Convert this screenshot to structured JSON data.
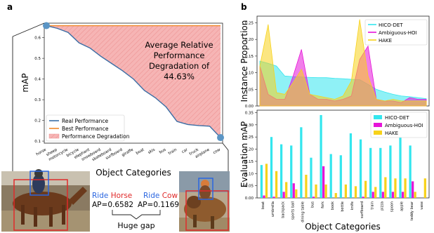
{
  "panel_labels": {
    "a": "a",
    "b": "b"
  },
  "panel_a": {
    "annotation": [
      "Average Relative",
      "Performance",
      "Degradation of",
      "44.63%"
    ],
    "legend": [
      "Real Performance",
      "Best Performance",
      "Performance Degradation"
    ],
    "photo_left": {
      "ride": "Ride",
      "object": "Horse",
      "ap": "AP=0.6582"
    },
    "photo_right": {
      "ride": "Ride",
      "object": "Cow",
      "ap": "AP=0.1169"
    },
    "gap_label": "Huge gap"
  },
  "colors": {
    "real": "#3a6ea5",
    "best": "#f0892a",
    "degradation_fill": "#f4aaaa",
    "hico": "#33e6ee",
    "ambiguous": "#e614d8",
    "hake": "#f7d21a",
    "point": "#5b95c5"
  },
  "chart_data": [
    {
      "type": "area",
      "title": "",
      "xlabel": "Object Categories",
      "ylabel": "mAP",
      "categories": [
        "horse",
        "sheep",
        "motorcycle",
        "bicycle",
        "elephant",
        "snowboard",
        "skateboard",
        "surfboard",
        "giraffe",
        "boat",
        "skis",
        "bus",
        "train",
        "car",
        "truck",
        "airplane",
        "cow"
      ],
      "series": [
        {
          "name": "Real Performance",
          "values": [
            0.658,
            0.645,
            0.625,
            0.575,
            0.55,
            0.51,
            0.475,
            0.44,
            0.4,
            0.345,
            0.31,
            0.265,
            0.195,
            0.18,
            0.175,
            0.172,
            0.117
          ]
        },
        {
          "name": "Best Performance",
          "values": [
            0.658,
            0.658,
            0.658,
            0.658,
            0.658,
            0.658,
            0.658,
            0.658,
            0.658,
            0.658,
            0.658,
            0.658,
            0.658,
            0.658,
            0.658,
            0.658,
            0.658
          ]
        }
      ],
      "yticks": [
        0.1,
        0.2,
        0.3,
        0.4,
        0.5,
        0.6
      ],
      "ylim": [
        0.09,
        0.67
      ],
      "legend_position": "lower-left"
    },
    {
      "type": "area",
      "title": "",
      "xlabel": "",
      "ylabel": "Instance Proportion",
      "x_count": 21,
      "series": [
        {
          "name": "HICO-DET",
          "values": [
            0.135,
            0.128,
            0.12,
            0.09,
            0.088,
            0.087,
            0.086,
            0.085,
            0.085,
            0.083,
            0.082,
            0.08,
            0.079,
            0.065,
            0.05,
            0.042,
            0.035,
            0.03,
            0.028,
            0.025,
            0.022
          ]
        },
        {
          "name": "Ambiguous-HOI",
          "values": [
            0.12,
            0.035,
            0.02,
            0.02,
            0.09,
            0.17,
            0.035,
            0.02,
            0.02,
            0.015,
            0.02,
            0.03,
            0.14,
            0.18,
            0.02,
            0.015,
            0.015,
            0.01,
            0.025,
            0.02,
            0.02
          ]
        },
        {
          "name": "HAKE",
          "values": [
            0.12,
            0.245,
            0.04,
            0.035,
            0.07,
            0.11,
            0.035,
            0.03,
            0.025,
            0.02,
            0.03,
            0.075,
            0.26,
            0.09,
            0.02,
            0.015,
            0.02,
            0.015,
            0.015,
            0.015,
            0.015
          ]
        }
      ],
      "yticks": [
        0.0,
        0.05,
        0.1,
        0.15,
        0.2,
        0.25
      ],
      "ylim": [
        0,
        0.27
      ],
      "legend_position": "top-right"
    },
    {
      "type": "bar",
      "title": "",
      "xlabel": "Object Categories",
      "ylabel": "Evaluation mAP",
      "categories": [
        "boat",
        "umbrella",
        "backpack",
        "sports ball",
        "dining table",
        "bus",
        "fork",
        "book",
        "bottle",
        "knife",
        "surfboard",
        "train",
        "pizza",
        "spoon",
        "apple",
        "teddy bear",
        "vase"
      ],
      "series": [
        {
          "name": "HICO-DET",
          "values": [
            0.135,
            0.25,
            0.22,
            0.215,
            0.29,
            0.165,
            0.34,
            0.18,
            0.175,
            0.265,
            0.24,
            0.205,
            0.205,
            0.215,
            0.28,
            0.215,
            0.0
          ]
        },
        {
          "name": "Ambiguous-HOI",
          "values": [
            0.01,
            0.005,
            0.025,
            0.06,
            0.0,
            0.005,
            0.13,
            0.0,
            0.0,
            0.0,
            0.005,
            0.025,
            0.025,
            0.025,
            0.025,
            0.068,
            0.0
          ]
        },
        {
          "name": "HAKE",
          "values": [
            0.14,
            0.11,
            0.065,
            0.035,
            0.095,
            0.055,
            0.055,
            0.02,
            0.055,
            0.048,
            0.07,
            0.045,
            0.085,
            0.08,
            0.08,
            0.025,
            0.08
          ]
        }
      ],
      "yticks": [
        0.0,
        0.05,
        0.1,
        0.15,
        0.2,
        0.25,
        0.3,
        0.35
      ],
      "ylim": [
        0,
        0.36
      ],
      "legend_position": "top-right"
    }
  ]
}
